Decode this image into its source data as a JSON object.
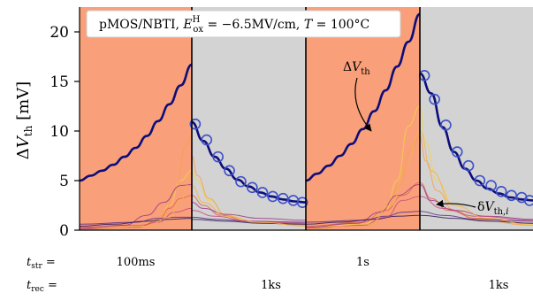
{
  "chart_data": {
    "type": "line",
    "title_parts": {
      "lead": "pMOS/NBTI, ",
      "E_sym": "E",
      "E_sup": "H",
      "E_sub": "ox",
      "E_val": " = −6.5MV/cm, ",
      "T_sym": "T",
      "T_val": " = 100°C"
    },
    "ylabel_parts": {
      "delta": "Δ",
      "V": "V",
      "sub": "th",
      "unit": " [mV]"
    },
    "ylim": [
      0,
      22.5
    ],
    "yticks": [
      0,
      5,
      10,
      15,
      20
    ],
    "phases": [
      {
        "kind": "stress",
        "label": "100ms",
        "color": "#f9a07a"
      },
      {
        "kind": "recovery",
        "label": "1ks",
        "color": "#d3d3d3"
      },
      {
        "kind": "stress",
        "label": "1s",
        "color": "#f9a07a"
      },
      {
        "kind": "recovery",
        "label": "1ks",
        "color": "#d3d3d3"
      }
    ],
    "row_labels": {
      "str": {
        "sym": "t",
        "sub": "str",
        "eq": " ="
      },
      "rec": {
        "sym": "t",
        "sub": "rec",
        "eq": " ="
      }
    },
    "annotations": {
      "mean": {
        "delta": "Δ",
        "V": "V",
        "sub": "th"
      },
      "single": {
        "delta": "δ",
        "V": "V",
        "sub": "th,",
        "i": "i"
      }
    },
    "series": [
      {
        "phase": 0,
        "role": "mean",
        "color": "#0d0d7a",
        "x": [
          0,
          0.1,
          0.2,
          0.3,
          0.4,
          0.5,
          0.6,
          0.7,
          0.8,
          0.9,
          1.0
        ],
        "y": [
          5.0,
          5.5,
          6.0,
          6.6,
          7.4,
          8.3,
          9.5,
          11.0,
          12.7,
          14.6,
          16.7
        ]
      },
      {
        "phase": 1,
        "role": "mean",
        "color": "#0d0d7a",
        "x": [
          0,
          0.1,
          0.2,
          0.3,
          0.4,
          0.5,
          0.6,
          0.7,
          0.8,
          0.9,
          1.0
        ],
        "y": [
          10.9,
          9.0,
          7.4,
          6.2,
          5.1,
          4.4,
          3.8,
          3.4,
          3.1,
          2.9,
          2.8
        ]
      },
      {
        "phase": 1,
        "role": "markers",
        "color": "#3c50c8",
        "x": [
          0.03,
          0.13,
          0.23,
          0.33,
          0.43,
          0.53,
          0.62,
          0.71,
          0.8,
          0.89,
          0.97
        ],
        "y": [
          10.7,
          9.1,
          7.4,
          6.0,
          4.9,
          4.3,
          3.8,
          3.4,
          3.2,
          3.0,
          2.8
        ]
      },
      {
        "phase": 2,
        "role": "mean",
        "color": "#0d0d7a",
        "x": [
          0,
          0.1,
          0.2,
          0.3,
          0.4,
          0.5,
          0.6,
          0.7,
          0.8,
          0.9,
          1.0
        ],
        "y": [
          5.0,
          5.7,
          6.5,
          7.5,
          8.7,
          10.2,
          12.0,
          14.1,
          16.5,
          19.0,
          21.8
        ]
      },
      {
        "phase": 3,
        "role": "mean",
        "color": "#0d0d7a",
        "x": [
          0,
          0.1,
          0.2,
          0.3,
          0.4,
          0.5,
          0.6,
          0.7,
          0.8,
          0.9,
          1.0
        ],
        "y": [
          15.8,
          13.8,
          10.4,
          7.9,
          6.2,
          5.0,
          4.2,
          3.7,
          3.3,
          3.1,
          3.0
        ]
      },
      {
        "phase": 3,
        "role": "markers",
        "color": "#3c50c8",
        "x": [
          0.04,
          0.13,
          0.23,
          0.33,
          0.43,
          0.53,
          0.63,
          0.72,
          0.81,
          0.9,
          0.97
        ],
        "y": [
          15.6,
          13.2,
          10.6,
          7.9,
          6.5,
          5.0,
          4.5,
          3.9,
          3.5,
          3.3,
          3.0
        ]
      },
      {
        "phase": 0,
        "role": "single",
        "color": "#f2d24b",
        "x": [
          0,
          0.5,
          0.7,
          0.8,
          0.9,
          1.0
        ],
        "y": [
          0.2,
          0.3,
          1.0,
          2.5,
          5.0,
          6.0
        ]
      },
      {
        "phase": 0,
        "role": "single",
        "color": "#f6a04d",
        "x": [
          0,
          0.6,
          0.75,
          0.85,
          0.95,
          1.0
        ],
        "y": [
          0.1,
          0.4,
          1.5,
          4.0,
          8.5,
          9.5
        ]
      },
      {
        "phase": 0,
        "role": "single",
        "color": "#e8624a",
        "x": [
          0,
          0.55,
          0.7,
          0.8,
          0.9,
          1.0
        ],
        "y": [
          0.3,
          0.5,
          1.0,
          2.2,
          3.2,
          3.5
        ]
      },
      {
        "phase": 0,
        "role": "single",
        "color": "#9a3a8a",
        "x": [
          0,
          0.4,
          0.6,
          0.75,
          0.9,
          1.0
        ],
        "y": [
          0.2,
          0.5,
          1.5,
          2.8,
          4.5,
          4.6
        ]
      },
      {
        "phase": 0,
        "role": "single",
        "color": "#5a2a88",
        "x": [
          0,
          0.5,
          0.7,
          0.85,
          1.0
        ],
        "y": [
          0.6,
          0.8,
          1.2,
          1.3,
          1.3
        ]
      },
      {
        "phase": 0,
        "role": "single",
        "color": "#2a1a5e",
        "x": [
          0,
          0.3,
          0.6,
          0.8,
          1.0
        ],
        "y": [
          0.4,
          0.6,
          0.9,
          1.1,
          1.2
        ]
      },
      {
        "phase": 0,
        "role": "single",
        "color": "#c84c7a",
        "x": [
          0,
          0.5,
          0.7,
          0.85,
          1.0
        ],
        "y": [
          0.1,
          0.3,
          0.8,
          1.8,
          2.2
        ]
      },
      {
        "phase": 0,
        "role": "single",
        "color": "#f2b24b",
        "x": [
          0,
          0.6,
          0.8,
          0.9,
          1.0
        ],
        "y": [
          0.0,
          0.4,
          1.3,
          3.0,
          5.8
        ]
      },
      {
        "phase": 1,
        "role": "single",
        "color": "#f2d24b",
        "x": [
          0,
          0.05,
          0.15,
          0.3,
          0.5,
          1.0
        ],
        "y": [
          6.0,
          5.0,
          3.0,
          1.6,
          0.9,
          0.5
        ]
      },
      {
        "phase": 1,
        "role": "single",
        "color": "#f6a04d",
        "x": [
          0,
          0.05,
          0.15,
          0.3,
          0.5,
          1.0
        ],
        "y": [
          7.5,
          5.5,
          3.2,
          1.5,
          0.8,
          0.5
        ]
      },
      {
        "phase": 1,
        "role": "single",
        "color": "#e8624a",
        "x": [
          0,
          0.1,
          0.25,
          0.5,
          1.0
        ],
        "y": [
          3.5,
          2.5,
          1.5,
          0.9,
          0.6
        ]
      },
      {
        "phase": 1,
        "role": "single",
        "color": "#9a3a8a",
        "x": [
          0,
          0.1,
          0.3,
          0.6,
          1.0
        ],
        "y": [
          2.8,
          2.2,
          1.6,
          1.2,
          1.0
        ]
      },
      {
        "phase": 1,
        "role": "single",
        "color": "#5a2a88",
        "x": [
          0,
          0.2,
          0.5,
          1.0
        ],
        "y": [
          1.3,
          1.1,
          0.9,
          0.8
        ]
      },
      {
        "phase": 1,
        "role": "single",
        "color": "#2a1a5e",
        "x": [
          0,
          0.3,
          0.6,
          1.0
        ],
        "y": [
          1.1,
          0.9,
          0.7,
          0.6
        ]
      },
      {
        "phase": 1,
        "role": "single",
        "color": "#c84c7a",
        "x": [
          0,
          0.2,
          0.5,
          1.0
        ],
        "y": [
          2.0,
          1.4,
          0.9,
          0.7
        ]
      },
      {
        "phase": 1,
        "role": "single",
        "color": "#f2b24b",
        "x": [
          0,
          0.1,
          0.3,
          0.6,
          1.0
        ],
        "y": [
          4.5,
          2.8,
          1.4,
          0.8,
          0.4
        ]
      },
      {
        "phase": 2,
        "role": "single",
        "color": "#f2d24b",
        "x": [
          0,
          0.5,
          0.7,
          0.8,
          0.9,
          1.0
        ],
        "y": [
          0.3,
          0.6,
          2.0,
          5.0,
          10.5,
          12.5
        ]
      },
      {
        "phase": 2,
        "role": "single",
        "color": "#f6a04d",
        "x": [
          0,
          0.55,
          0.7,
          0.82,
          0.92,
          1.0
        ],
        "y": [
          0.2,
          0.5,
          1.8,
          4.5,
          8.0,
          9.5
        ]
      },
      {
        "phase": 2,
        "role": "single",
        "color": "#e8624a",
        "x": [
          0,
          0.5,
          0.7,
          0.85,
          1.0
        ],
        "y": [
          0.4,
          0.8,
          2.0,
          3.5,
          4.8
        ]
      },
      {
        "phase": 2,
        "role": "single",
        "color": "#9a3a8a",
        "x": [
          0,
          0.45,
          0.65,
          0.8,
          1.0
        ],
        "y": [
          0.3,
          0.7,
          1.8,
          3.5,
          4.6
        ]
      },
      {
        "phase": 2,
        "role": "single",
        "color": "#5a2a88",
        "x": [
          0,
          0.5,
          0.7,
          0.85,
          1.0
        ],
        "y": [
          0.8,
          1.0,
          1.4,
          1.8,
          1.9
        ]
      },
      {
        "phase": 2,
        "role": "single",
        "color": "#2a1a5e",
        "x": [
          0,
          0.3,
          0.6,
          0.8,
          1.0
        ],
        "y": [
          0.6,
          0.8,
          1.1,
          1.4,
          1.5
        ]
      },
      {
        "phase": 2,
        "role": "single",
        "color": "#c84c7a",
        "x": [
          0,
          0.5,
          0.7,
          0.85,
          1.0
        ],
        "y": [
          0.2,
          0.5,
          1.3,
          3.0,
          3.4
        ]
      },
      {
        "phase": 2,
        "role": "single",
        "color": "#f2b24b",
        "x": [
          0,
          0.55,
          0.75,
          0.88,
          1.0
        ],
        "y": [
          0.1,
          0.6,
          2.5,
          6.5,
          10.0
        ]
      },
      {
        "phase": 3,
        "role": "single",
        "color": "#f2d24b",
        "x": [
          0,
          0.05,
          0.15,
          0.3,
          0.5,
          1.0
        ],
        "y": [
          12.5,
          9.0,
          5.0,
          2.5,
          1.2,
          0.6
        ]
      },
      {
        "phase": 3,
        "role": "single",
        "color": "#f6a04d",
        "x": [
          0,
          0.05,
          0.15,
          0.3,
          0.5,
          1.0
        ],
        "y": [
          9.5,
          7.0,
          4.0,
          2.0,
          1.0,
          0.5
        ]
      },
      {
        "phase": 3,
        "role": "single",
        "color": "#e8624a",
        "x": [
          0,
          0.1,
          0.25,
          0.5,
          1.0
        ],
        "y": [
          4.8,
          3.2,
          2.0,
          1.2,
          0.7
        ]
      },
      {
        "phase": 3,
        "role": "single",
        "color": "#9a3a8a",
        "x": [
          0,
          0.1,
          0.3,
          0.6,
          1.0
        ],
        "y": [
          4.6,
          3.0,
          2.0,
          1.4,
          1.1
        ]
      },
      {
        "phase": 3,
        "role": "single",
        "color": "#5a2a88",
        "x": [
          0,
          0.2,
          0.5,
          1.0
        ],
        "y": [
          1.9,
          1.5,
          1.1,
          0.9
        ]
      },
      {
        "phase": 3,
        "role": "single",
        "color": "#2a1a5e",
        "x": [
          0,
          0.3,
          0.6,
          1.0
        ],
        "y": [
          1.5,
          1.2,
          0.9,
          0.7
        ]
      },
      {
        "phase": 3,
        "role": "single",
        "color": "#c84c7a",
        "x": [
          0,
          0.2,
          0.5,
          1.0
        ],
        "y": [
          3.4,
          2.2,
          1.4,
          1.0
        ]
      },
      {
        "phase": 3,
        "role": "single",
        "color": "#f2b24b",
        "x": [
          0,
          0.1,
          0.3,
          0.6,
          1.0
        ],
        "y": [
          10.0,
          6.0,
          2.5,
          1.2,
          0.5
        ]
      }
    ]
  }
}
